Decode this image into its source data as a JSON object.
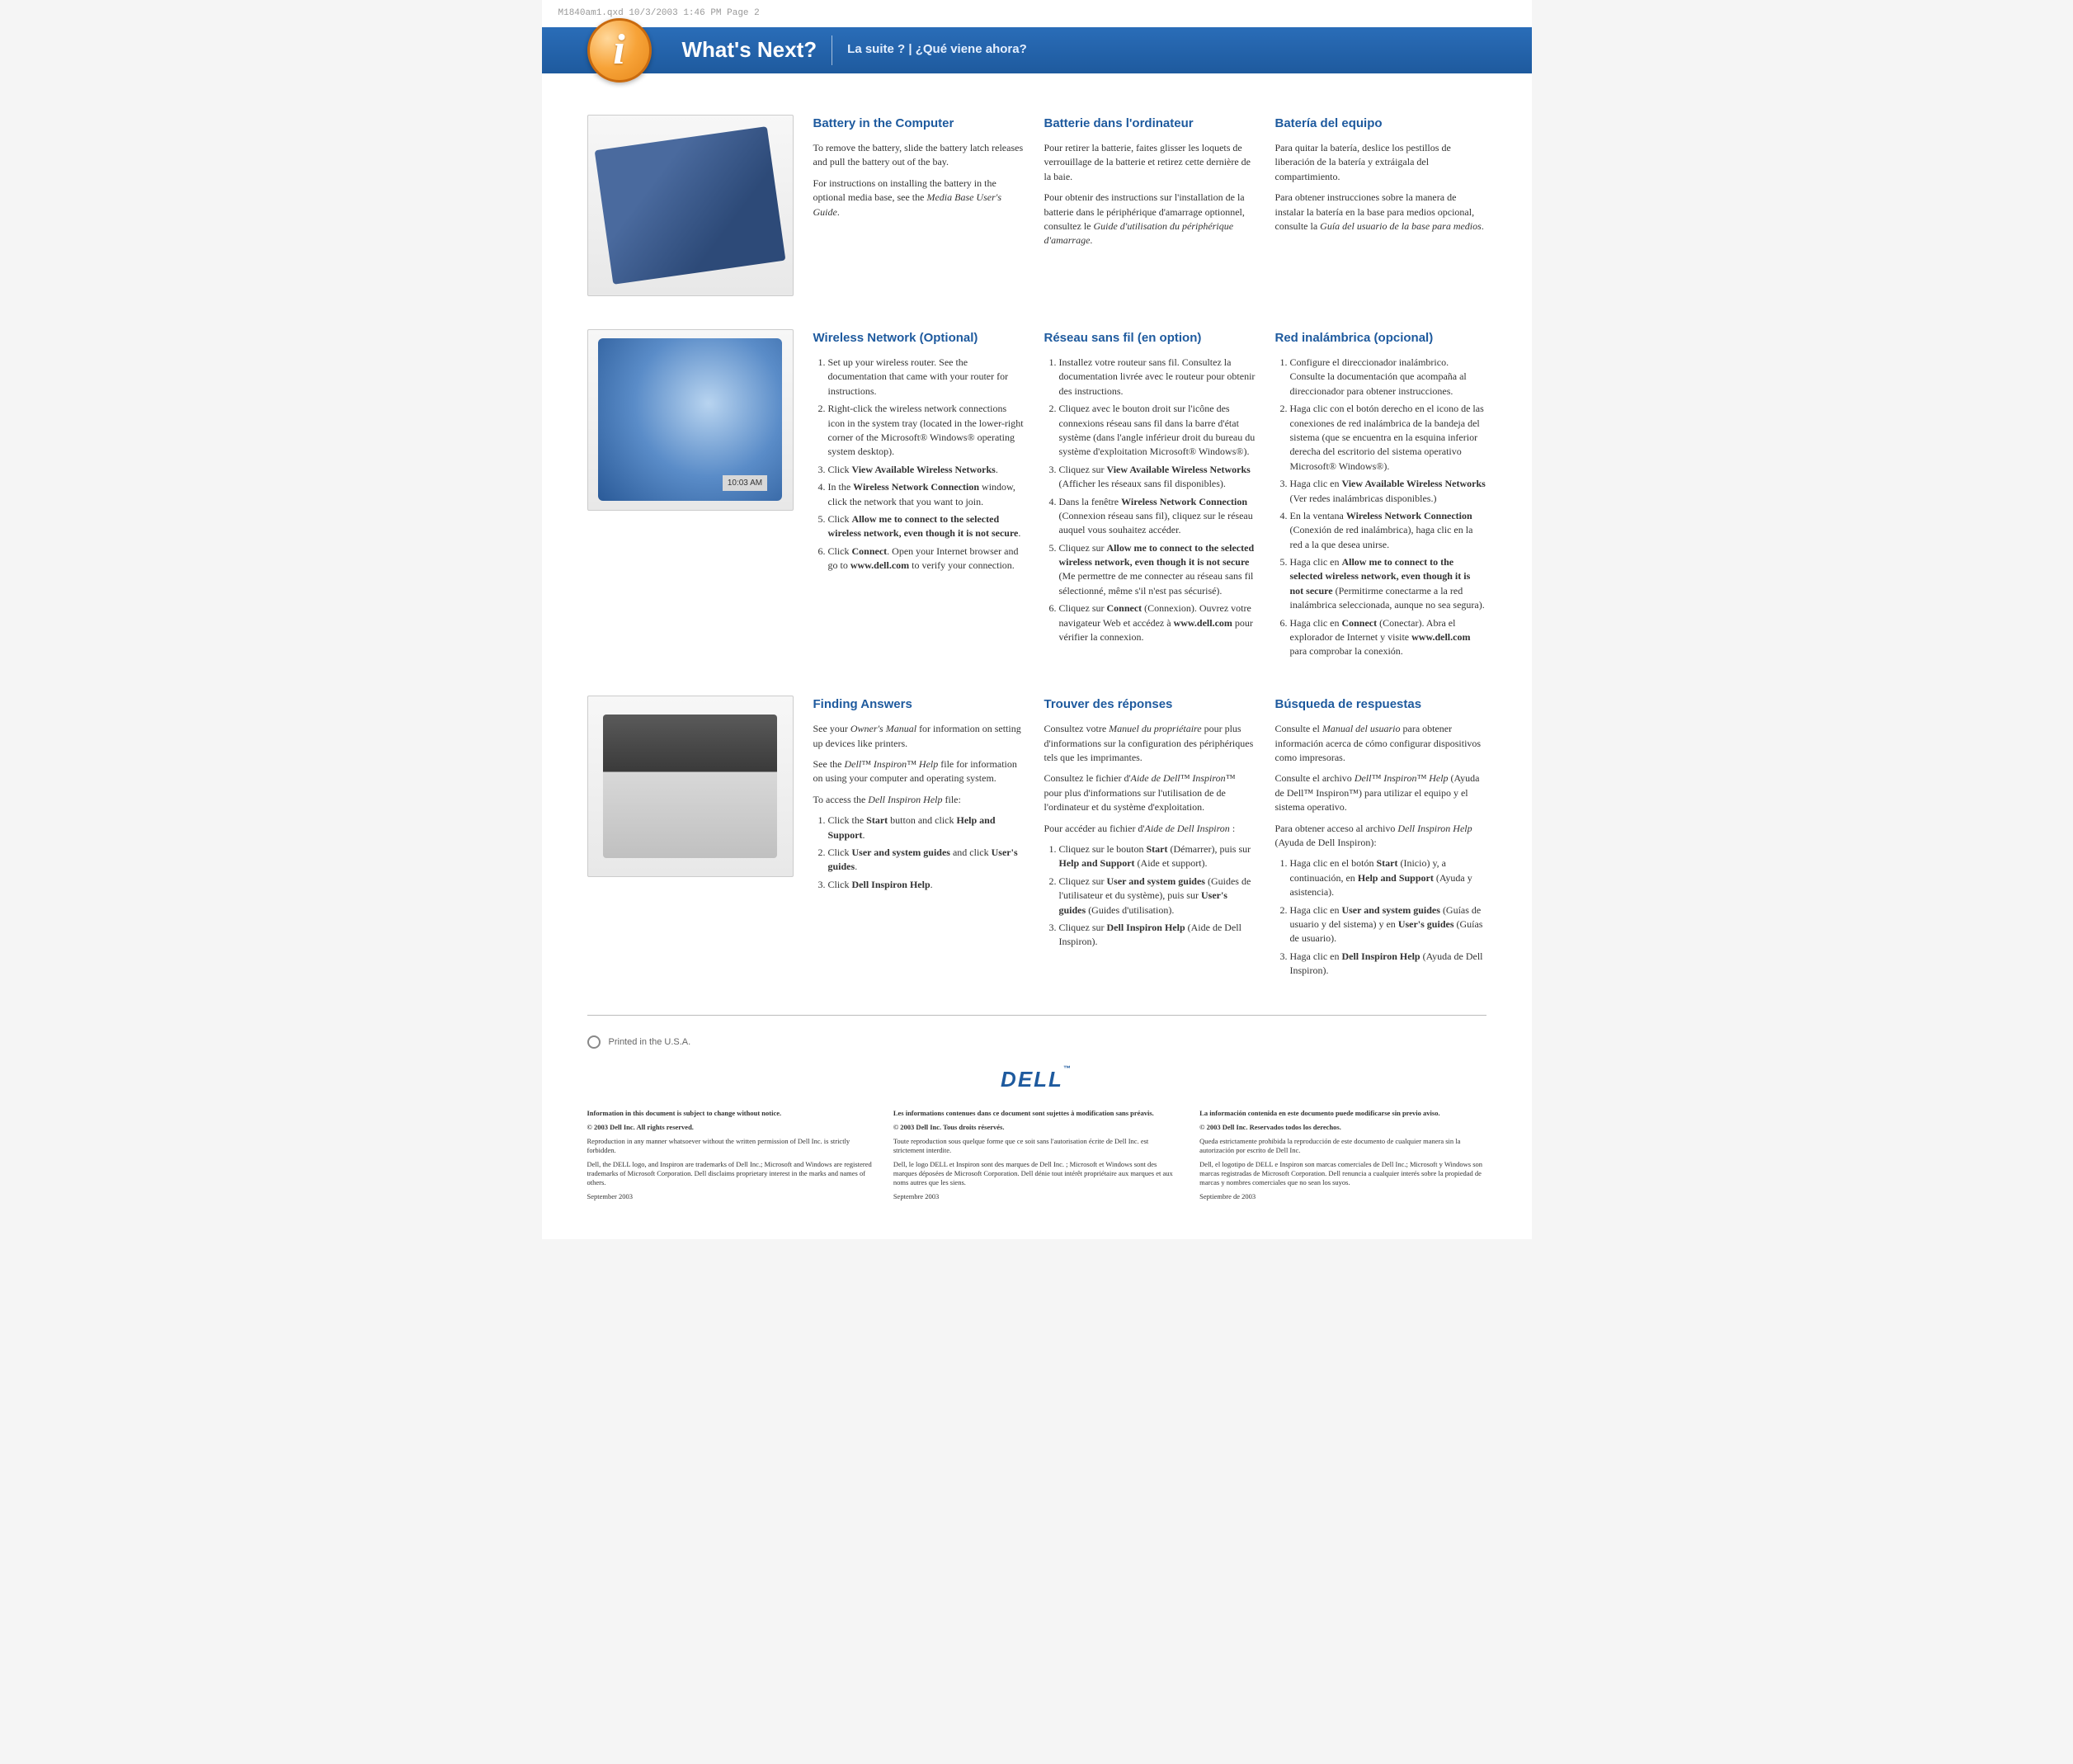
{
  "meta": {
    "print_line": "M1840am1.qxd  10/3/2003  1:46 PM  Page 2"
  },
  "header": {
    "title": "What's Next?",
    "subtitle": "La suite ? | ¿Qué viene ahora?",
    "info_glyph": "i"
  },
  "colors": {
    "header_bg_top": "#2a6db8",
    "header_bg_bottom": "#1e5a9e",
    "heading": "#1e5a9e",
    "icon_orange": "#f7a338"
  },
  "sections": {
    "battery": {
      "image_alt": "Laptop media base with battery",
      "en": {
        "heading": "Battery in the Computer",
        "p1": "To remove the battery, slide the battery latch releases and pull the battery out of the bay.",
        "p2_pre": "For instructions on installing the battery in the optional media base, see the ",
        "p2_em": "Media Base User's Guide",
        "p2_post": "."
      },
      "fr": {
        "heading": "Batterie dans l'ordinateur",
        "p1": "Pour retirer la batterie, faites glisser les loquets de verrouillage de la batterie et retirez cette dernière de la baie.",
        "p2_pre": "Pour obtenir des instructions sur l'installation de la batterie dans le périphérique d'amarrage optionnel, consultez le ",
        "p2_em": "Guide d'utilisation du périphérique d'amarrage",
        "p2_post": "."
      },
      "es": {
        "heading": "Batería del equipo",
        "p1": "Para quitar la batería, deslice los pestillos de liberación de la batería y extráigala del compartimiento.",
        "p2_pre": "Para obtener instrucciones sobre la manera de instalar la batería en la base para medios opcional, consulte la ",
        "p2_em": "Guía del usuario de la base para medios",
        "p2_post": "."
      }
    },
    "wireless": {
      "image_alt": "Wireless network connection with monitors and taskbar 10:03 AM",
      "en": {
        "heading": "Wireless Network (Optional)",
        "li1": "Set up your wireless router. See the documentation that came with your router for instructions.",
        "li2": "Right-click the wireless network connections icon in the system tray (located in the lower-right corner of the Microsoft® Windows® operating system desktop).",
        "li3_pre": "Click ",
        "li3_b": "View Available Wireless Networks",
        "li3_post": ".",
        "li4_pre": "In the ",
        "li4_b": "Wireless Network Connection",
        "li4_post": " window, click the network that you want to join.",
        "li5_pre": "Click ",
        "li5_b": "Allow me to connect to the selected wireless network, even though it is not secure",
        "li5_post": ".",
        "li6_pre": "Click ",
        "li6_b": "Connect",
        "li6_mid": ". Open your Internet browser and go to ",
        "li6_b2": "www.dell.com",
        "li6_post": " to verify your connection."
      },
      "fr": {
        "heading": "Réseau sans fil (en option)",
        "li1": "Installez votre routeur sans fil. Consultez la documentation livrée avec le routeur pour obtenir des instructions.",
        "li2": "Cliquez avec le bouton droit sur l'icône des connexions réseau sans fil dans la barre d'état système (dans l'angle inférieur droit du bureau du système d'exploitation Microsoft® Windows®).",
        "li3_pre": "Cliquez sur ",
        "li3_b": "View Available Wireless Networks",
        "li3_post": " (Afficher les réseaux sans fil disponibles).",
        "li4_pre": "Dans la fenêtre ",
        "li4_b": "Wireless Network Connection",
        "li4_post": " (Connexion réseau sans fil), cliquez sur le réseau auquel vous souhaitez accéder.",
        "li5_pre": "Cliquez sur ",
        "li5_b": "Allow me to connect to the selected wireless network, even though it is not secure",
        "li5_post": " (Me permettre de me connecter au réseau sans fil sélectionné, même s'il n'est pas sécurisé).",
        "li6_pre": "Cliquez sur ",
        "li6_b": "Connect",
        "li6_mid": " (Connexion). Ouvrez votre navigateur Web et accédez à ",
        "li6_b2": "www.dell.com",
        "li6_post": " pour vérifier la connexion."
      },
      "es": {
        "heading": "Red inalámbrica (opcional)",
        "li1": "Configure el direccionador inalámbrico. Consulte la documentación que acompaña al direccionador para obtener instrucciones.",
        "li2": "Haga clic con el botón derecho en el icono de las conexiones de red inalámbrica de la bandeja del sistema (que se encuentra en la esquina inferior derecha del escritorio del sistema operativo Microsoft® Windows®).",
        "li3_pre": "Haga clic en ",
        "li3_b": "View Available Wireless Networks",
        "li3_post": " (Ver redes inalámbricas disponibles.)",
        "li4_pre": "En la ventana ",
        "li4_b": "Wireless Network Connection",
        "li4_post": " (Conexión de red inalámbrica), haga clic en la red a la que desea unirse.",
        "li5_pre": "Haga clic en ",
        "li5_b": "Allow me to connect to the selected wireless network, even though it is not secure",
        "li5_post": " (Permitirme conectarme a la red inalámbrica seleccionada, aunque no sea segura).",
        "li6_pre": "Haga clic en ",
        "li6_b": "Connect",
        "li6_mid": " (Conectar). Abra el explorador de Internet y visite ",
        "li6_b2": "www.dell.com",
        "li6_post": " para comprobar la conexión."
      }
    },
    "answers": {
      "image_alt": "Dell printer with owner's manual booklet",
      "en": {
        "heading": "Finding Answers",
        "p1_pre": "See your ",
        "p1_em": "Owner's Manual",
        "p1_post": " for information on setting up devices like printers.",
        "p2_pre": "See the ",
        "p2_em": "Dell™ Inspiron™ Help",
        "p2_post": " file for information on using your computer and operating system.",
        "p3_pre": "To access the ",
        "p3_em": "Dell Inspiron Help",
        "p3_post": " file:",
        "li1_pre": "Click the ",
        "li1_b1": "Start",
        "li1_mid": " button and click ",
        "li1_b2": "Help and Support",
        "li1_post": ".",
        "li2_pre": "Click ",
        "li2_b1": "User and system guides",
        "li2_mid": " and click ",
        "li2_b2": "User's guides",
        "li2_post": ".",
        "li3_pre": "Click ",
        "li3_b": "Dell Inspiron Help",
        "li3_post": "."
      },
      "fr": {
        "heading": "Trouver des réponses",
        "p1_pre": "Consultez votre ",
        "p1_em": "Manuel du propriétaire",
        "p1_post": " pour plus d'informations sur la configuration des périphériques tels que les imprimantes.",
        "p2_pre": "Consultez le fichier d'",
        "p2_em": "Aide de Dell™ Inspiron™",
        "p2_post": " pour plus d'informations sur l'utilisation de de l'ordinateur et du système d'exploitation.",
        "p3_pre": "Pour accéder au fichier d'",
        "p3_em": "Aide de Dell Inspiron",
        "p3_post": " :",
        "li1_pre": "Cliquez sur le bouton ",
        "li1_b1": "Start",
        "li1_mid": " (Démarrer), puis sur ",
        "li1_b2": "Help and Support",
        "li1_post": " (Aide et support).",
        "li2_pre": "Cliquez sur ",
        "li2_b1": "User and system guides",
        "li2_mid": " (Guides de l'utilisateur et du système), puis sur ",
        "li2_b2": "User's guides",
        "li2_post": " (Guides d'utilisation).",
        "li3_pre": "Cliquez sur ",
        "li3_b": "Dell Inspiron Help",
        "li3_post": " (Aide de Dell Inspiron)."
      },
      "es": {
        "heading": "Búsqueda de respuestas",
        "p1_pre": "Consulte el ",
        "p1_em": "Manual del usuario",
        "p1_post": " para obtener información acerca de cómo configurar dispositivos como impresoras.",
        "p2_pre": "Consulte el archivo ",
        "p2_em": "Dell™ Inspiron™ Help",
        "p2_post": " (Ayuda de Dell™ Inspiron™) para utilizar el equipo y el sistema operativo.",
        "p3_pre": "Para obtener acceso al archivo ",
        "p3_em": "Dell Inspiron Help",
        "p3_post": " (Ayuda de Dell Inspiron):",
        "li1_pre": "Haga clic en el botón ",
        "li1_b1": "Start",
        "li1_mid": " (Inicio) y, a continuación, en ",
        "li1_b2": "Help and Support",
        "li1_post": " (Ayuda y asistencia).",
        "li2_pre": "Haga clic en ",
        "li2_b1": "User and system guides",
        "li2_mid": " (Guías de usuario y del sistema) y en ",
        "li2_b2": "User's guides",
        "li2_post": " (Guías de usuario).",
        "li3_pre": "Haga clic en ",
        "li3_b": "Dell Inspiron Help",
        "li3_post": " (Ayuda de Dell Inspiron)."
      }
    }
  },
  "footer": {
    "printed": "Printed in the U.S.A.",
    "logo_text": "DELL",
    "en": {
      "l1": "Information in this document is subject to change without notice.",
      "l2": "© 2003 Dell Inc. All rights reserved.",
      "l3": "Reproduction in any manner whatsoever without the written permission of Dell Inc. is strictly forbidden.",
      "l4": "Dell, the DELL logo, and Inspiron are trademarks of Dell Inc.; Microsoft and Windows are registered trademarks of Microsoft Corporation. Dell disclaims proprietary interest in the marks and names of others.",
      "l5": "September 2003"
    },
    "fr": {
      "l1": "Les informations contenues dans ce document sont sujettes à modification sans préavis.",
      "l2": "© 2003 Dell Inc. Tous droits réservés.",
      "l3": "Toute reproduction sous quelque forme que ce soit sans l'autorisation écrite de Dell Inc. est strictement interdite.",
      "l4": "Dell, le logo DELL et Inspiron sont des marques de Dell Inc. ; Microsoft et Windows sont des marques déposées de Microsoft Corporation. Dell dénie tout intérêt propriétaire aux marques et aux noms autres que les siens.",
      "l5": "Septembre 2003"
    },
    "es": {
      "l1": "La información contenida en este documento puede modificarse sin previo aviso.",
      "l2": "© 2003 Dell Inc. Reservados todos los derechos.",
      "l3": "Queda estrictamente prohibida la reproducción de este documento de cualquier manera sin la autorización por escrito de Dell Inc.",
      "l4": "Dell, el logotipo de DELL e Inspiron son marcas comerciales de Dell Inc.; Microsoft y Windows son marcas registradas de Microsoft Corporation. Dell renuncia a cualquier interés sobre la propiedad de marcas y nombres comerciales que no sean los suyos.",
      "l5": "Septiembre de 2003"
    }
  }
}
